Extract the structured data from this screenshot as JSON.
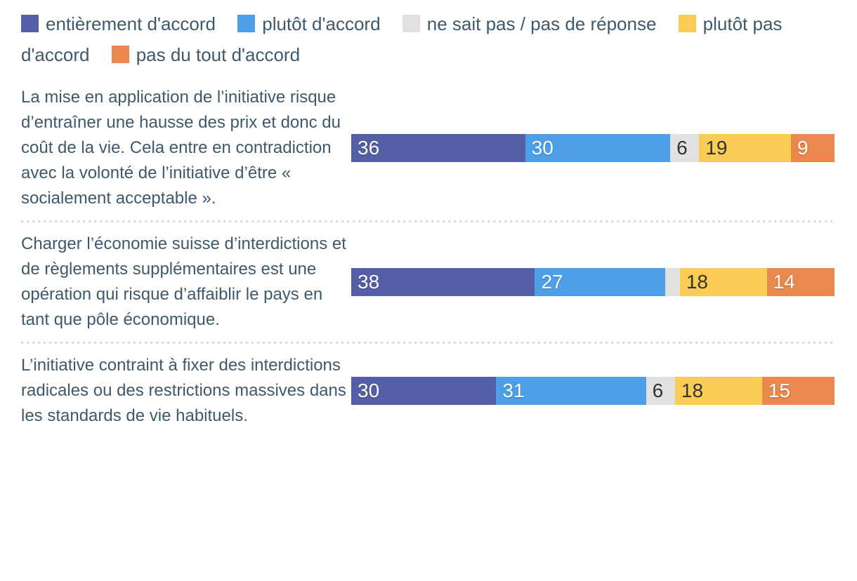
{
  "chart_data": {
    "type": "bar",
    "stacked": true,
    "orientation": "horizontal",
    "unit": "percent",
    "grid": false,
    "legend": {
      "position": "top",
      "items": [
        {
          "label": "entièrement d'accord",
          "color": "#555FA8"
        },
        {
          "label": "plutôt d'accord",
          "color": "#4DA0E8"
        },
        {
          "label": "ne sait pas / pas de réponse",
          "color": "#E1E1E1"
        },
        {
          "label": "plutôt pas d'accord",
          "color": "#FACC55"
        },
        {
          "label": "pas du tout d'accord",
          "color": "#E9894E"
        }
      ]
    },
    "rows": [
      {
        "statement": "La mise en application de l’initiative risque d’entraîner une hausse des prix et donc du coût de la vie. Cela entre en contradiction avec la volonté de l’initiative d’être « socialement acceptable ».",
        "segments": [
          {
            "series": "entièrement d'accord",
            "value": 36,
            "label": "36",
            "width": "36%",
            "color": "#555FA8"
          },
          {
            "series": "plutôt d'accord",
            "value": 30,
            "label": "30",
            "width": "30%",
            "color": "#4DA0E8"
          },
          {
            "series": "ne sait pas / pas de réponse",
            "value": 6,
            "label": "6",
            "width": "6%",
            "color": "#E1E1E1"
          },
          {
            "series": "plutôt pas d'accord",
            "value": 19,
            "label": "19",
            "width": "19%",
            "color": "#FACC55"
          },
          {
            "series": "pas du tout d'accord",
            "value": 9,
            "label": "9",
            "width": "9%",
            "color": "#E9894E"
          }
        ]
      },
      {
        "statement": "Charger l’économie suisse d’interdictions et de règlements supplémentaires est une opération qui risque d’affaiblir le pays en tant que pôle économique.",
        "segments": [
          {
            "series": "entièrement d'accord",
            "value": 38,
            "label": "38",
            "width": "38%",
            "color": "#555FA8"
          },
          {
            "series": "plutôt d'accord",
            "value": 27,
            "label": "27",
            "width": "27%",
            "color": "#4DA0E8"
          },
          {
            "series": "ne sait pas / pas de réponse",
            "value": 3,
            "label": "",
            "width": "3%",
            "color": "#E1E1E1"
          },
          {
            "series": "plutôt pas d'accord",
            "value": 18,
            "label": "18",
            "width": "18%",
            "color": "#FACC55"
          },
          {
            "series": "pas du tout d'accord",
            "value": 14,
            "label": "14",
            "width": "14%",
            "color": "#E9894E"
          }
        ]
      },
      {
        "statement": "L’initiative contraint à fixer des interdictions radicales ou des restrictions massives dans les standards de vie habituels.",
        "segments": [
          {
            "series": "entièrement d'accord",
            "value": 30,
            "label": "30",
            "width": "30%",
            "color": "#555FA8"
          },
          {
            "series": "plutôt d'accord",
            "value": 31,
            "label": "31",
            "width": "31%",
            "color": "#4DA0E8"
          },
          {
            "series": "ne sait pas / pas de réponse",
            "value": 6,
            "label": "6",
            "width": "6%",
            "color": "#E1E1E1"
          },
          {
            "series": "plutôt pas d'accord",
            "value": 18,
            "label": "18",
            "width": "18%",
            "color": "#FACC55"
          },
          {
            "series": "pas du tout d'accord",
            "value": 15,
            "label": "15",
            "width": "15%",
            "color": "#E9894E"
          }
        ]
      }
    ]
  }
}
